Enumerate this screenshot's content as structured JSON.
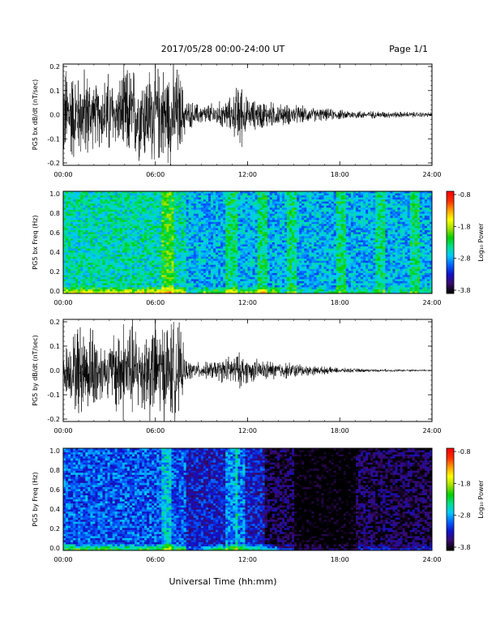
{
  "header": {
    "title": "2017/05/28  00:00-24:00 UT",
    "page": "Page 1/1"
  },
  "xlabel": "Universal Time (hh:mm)",
  "colorbar": {
    "label": "Log₁₀ Power",
    "ticks": [
      "-0.8",
      "-1.8",
      "-2.8",
      "-3.8"
    ],
    "range": [
      -3.8,
      -0.8
    ],
    "colors": [
      "#000000",
      "#3a0a6e",
      "#1010c8",
      "#0060ff",
      "#00c8ff",
      "#00e090",
      "#00d000",
      "#a0e000",
      "#ffff00",
      "#ffa000",
      "#ff3000",
      "#ff0000"
    ]
  },
  "chart_data": [
    {
      "type": "line",
      "title": "",
      "ylabel": "PG5 bx dB/dt (nT/sec)",
      "xlabel": "",
      "xlim": [
        "00:00",
        "24:00"
      ],
      "ylim": [
        -0.2,
        0.2
      ],
      "xticks": [
        "00:00",
        "06:00",
        "12:00",
        "18:00",
        "24:00"
      ],
      "yticks": [
        "0.2",
        "0.1",
        "0.0",
        "-0.1",
        "-0.2"
      ],
      "envelope": {
        "hours": [
          0,
          0.5,
          1,
          1.5,
          2,
          2.5,
          3,
          3.5,
          4,
          4.5,
          5,
          5.5,
          6,
          6.5,
          7,
          7.5,
          8,
          9,
          10,
          11,
          11.5,
          12,
          13,
          14,
          15,
          16,
          17,
          18,
          20,
          22,
          24
        ],
        "amplitude": [
          0.2,
          0.2,
          0.16,
          0.2,
          0.12,
          0.14,
          0.18,
          0.12,
          0.2,
          0.2,
          0.18,
          0.2,
          0.2,
          0.2,
          0.2,
          0.2,
          0.06,
          0.04,
          0.05,
          0.07,
          0.15,
          0.06,
          0.06,
          0.045,
          0.04,
          0.03,
          0.025,
          0.02,
          0.015,
          0.012,
          0.01
        ]
      }
    },
    {
      "type": "heatmap",
      "title": "",
      "ylabel": "PG5 bx Freq (Hz)",
      "xlabel": "",
      "xlim": [
        "00:00",
        "24:00"
      ],
      "ylim": [
        0.0,
        1.0
      ],
      "xticks": [
        "00:00",
        "06:00",
        "12:00",
        "18:00",
        "24:00"
      ],
      "yticks": [
        "1.0",
        "0.8",
        "0.6",
        "0.4",
        "0.2",
        "0.0"
      ],
      "value_range": [
        -3.8,
        -0.8
      ]
    },
    {
      "type": "line",
      "title": "",
      "ylabel": "PG5 by dB/dt (nT/sec)",
      "xlabel": "",
      "xlim": [
        "00:00",
        "24:00"
      ],
      "ylim": [
        -0.2,
        0.2
      ],
      "xticks": [
        "00:00",
        "06:00",
        "12:00",
        "18:00",
        "24:00"
      ],
      "yticks": [
        "0.2",
        "0.1",
        "0.0",
        "-0.1",
        "-0.2"
      ],
      "envelope": {
        "hours": [
          0,
          0.5,
          1,
          1.5,
          2,
          2.5,
          3,
          3.5,
          4,
          4.5,
          5,
          5.5,
          6,
          6.5,
          7,
          7.5,
          8,
          9,
          10,
          11,
          11.5,
          12,
          13,
          14,
          15,
          16,
          17,
          18,
          20,
          22,
          24
        ],
        "amplitude": [
          0.1,
          0.12,
          0.2,
          0.15,
          0.2,
          0.12,
          0.1,
          0.2,
          0.2,
          0.2,
          0.15,
          0.2,
          0.2,
          0.2,
          0.2,
          0.2,
          0.04,
          0.03,
          0.04,
          0.06,
          0.07,
          0.05,
          0.04,
          0.035,
          0.03,
          0.02,
          0.015,
          0.01,
          0.006,
          0.005,
          0.004
        ]
      }
    },
    {
      "type": "heatmap",
      "title": "",
      "ylabel": "PG5 by Freq (Hz)",
      "xlabel": "",
      "xlim": [
        "00:00",
        "24:00"
      ],
      "ylim": [
        0.0,
        1.0
      ],
      "xticks": [
        "00:00",
        "06:00",
        "12:00",
        "18:00",
        "24:00"
      ],
      "yticks": [
        "1.0",
        "0.8",
        "0.6",
        "0.4",
        "0.2",
        "0.0"
      ],
      "value_range": [
        -3.8,
        -0.8
      ]
    }
  ]
}
